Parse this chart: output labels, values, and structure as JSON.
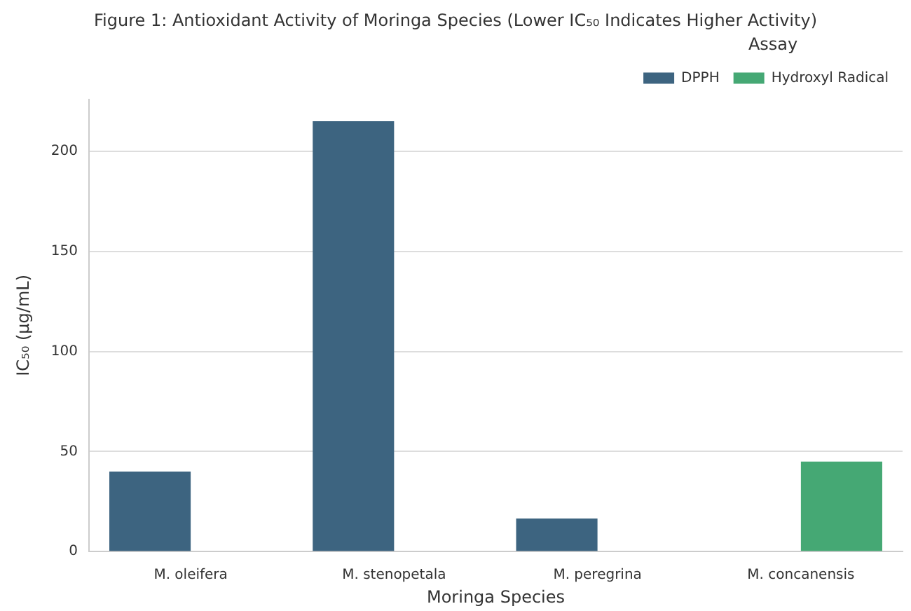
{
  "chart_data": {
    "type": "bar",
    "title": "Figure 1: Antioxidant Activity of Moringa Species (Lower IC₅₀ Indicates Higher Activity)",
    "xlabel": "Moringa Species",
    "ylabel": "IC₅₀ (µg/mL)",
    "legend_title": "Assay",
    "categories": [
      "M. oleifera",
      "M. stenopetala",
      "M. peregrina",
      "M. concanensis"
    ],
    "series": [
      {
        "name": "DPPH",
        "color": "#3d6480",
        "values": [
          40,
          215,
          16.5,
          null
        ]
      },
      {
        "name": "Hydroxyl Radical",
        "color": "#45a874",
        "values": [
          null,
          null,
          null,
          45
        ]
      }
    ],
    "ylim": [
      0,
      226
    ],
    "yticks": [
      0,
      50,
      100,
      150,
      200
    ],
    "grid": "y",
    "legend": "top right"
  }
}
